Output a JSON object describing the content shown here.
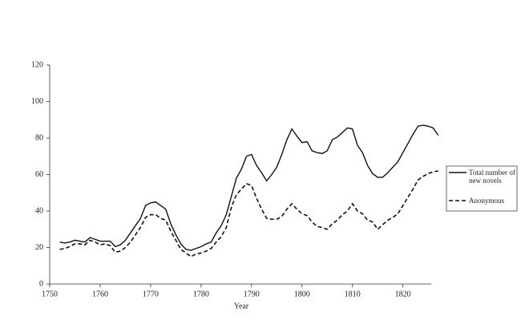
{
  "chart_data": {
    "type": "line",
    "x_label": "Year",
    "x": [
      1752,
      1753,
      1754,
      1755,
      1756,
      1757,
      1758,
      1759,
      1760,
      1761,
      1762,
      1763,
      1764,
      1765,
      1766,
      1767,
      1768,
      1769,
      1770,
      1771,
      1772,
      1773,
      1774,
      1775,
      1776,
      1777,
      1778,
      1779,
      1780,
      1781,
      1782,
      1783,
      1784,
      1785,
      1786,
      1787,
      1788,
      1789,
      1790,
      1791,
      1792,
      1793,
      1794,
      1795,
      1796,
      1797,
      1798,
      1799,
      1800,
      1801,
      1802,
      1803,
      1804,
      1805,
      1806,
      1807,
      1808,
      1809,
      1810,
      1811,
      1812,
      1813,
      1814,
      1815,
      1816,
      1817,
      1818,
      1819,
      1820,
      1821,
      1822,
      1823,
      1824,
      1825,
      1826,
      1827
    ],
    "series": [
      {
        "name": "Total number of new novels",
        "color": "#111111",
        "dash": false,
        "values": [
          23,
          22.5,
          23,
          24,
          23.5,
          23,
          25.5,
          24.5,
          23.5,
          23.5,
          23.5,
          20.5,
          21.5,
          24,
          28,
          32,
          36,
          43,
          44.5,
          45,
          43,
          41,
          33,
          27,
          22,
          19,
          18.5,
          19.5,
          20.5,
          22,
          23,
          28,
          32,
          38,
          48,
          58,
          63,
          70,
          71,
          65,
          61,
          56.5,
          60,
          64,
          71,
          79,
          85,
          81,
          77.5,
          78,
          73,
          72,
          71.5,
          73,
          79,
          80.5,
          83,
          85.5,
          85,
          76,
          72,
          65,
          60.5,
          58.5,
          58.5,
          61,
          64,
          67,
          72,
          77,
          82,
          86.5,
          87,
          86.5,
          85.5,
          81.5
        ]
      },
      {
        "name": "Anonymous",
        "color": "#111111",
        "dash": true,
        "values": [
          19,
          19.5,
          20.5,
          22,
          22,
          21.5,
          24,
          23,
          21.5,
          22,
          21,
          17.5,
          18,
          20,
          23,
          27,
          31,
          36.5,
          38,
          38,
          36,
          35,
          29,
          24,
          19,
          17,
          15,
          16.5,
          17,
          18,
          19.5,
          23,
          26,
          31,
          42,
          49,
          52,
          55,
          54,
          47,
          41,
          36,
          35.5,
          35.5,
          37,
          41,
          44,
          41,
          38.5,
          37.5,
          34,
          31.5,
          31,
          30,
          33,
          35,
          38,
          40,
          44,
          40,
          38.5,
          35,
          34,
          30,
          32.5,
          35,
          36.5,
          38.5,
          43,
          47.5,
          52,
          57,
          59,
          60.5,
          61.5,
          62
        ]
      }
    ],
    "xlim": [
      1750,
      1828
    ],
    "xticks": [
      1750,
      1760,
      1770,
      1780,
      1790,
      1800,
      1810,
      1820
    ],
    "ylim": [
      0,
      120
    ],
    "yticks": [
      0,
      20,
      40,
      60,
      80,
      100,
      120
    ],
    "grid": false,
    "legend": "right"
  }
}
